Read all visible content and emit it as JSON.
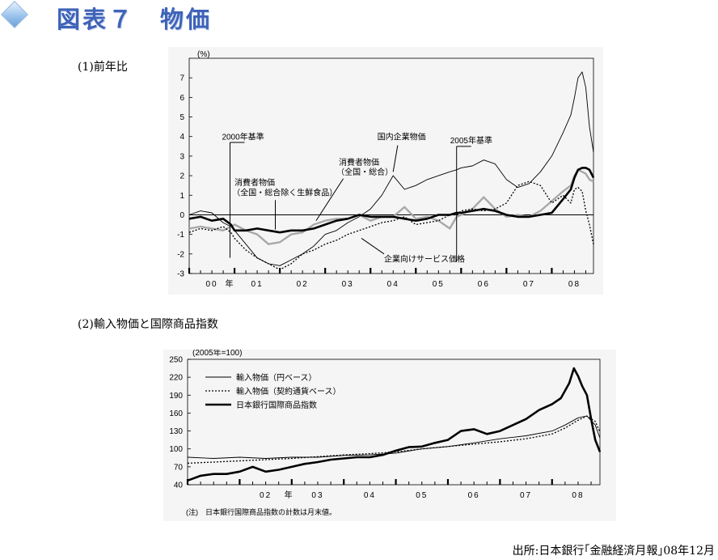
{
  "page": {
    "title": "図表７　物価",
    "section1_label": "(1)前年比",
    "section2_label": "(2)輸入物価と国際商品指数",
    "source": "出所:日本銀行｢金融経済月報｣08年12月"
  },
  "chart_data": [
    {
      "type": "line",
      "title": "",
      "unit_label": "(%)",
      "ylim": [
        -3,
        8
      ],
      "yticks": [
        -3,
        -2,
        -1,
        0,
        1,
        2,
        3,
        4,
        5,
        6,
        7
      ],
      "xlim": [
        2000.0,
        2008.92
      ],
      "x_tick_labels": [
        {
          "x": 2000.5,
          "label": "00"
        },
        {
          "x": 2000.9,
          "label": "年"
        },
        {
          "x": 2001.5,
          "label": "01"
        },
        {
          "x": 2002.5,
          "label": "02"
        },
        {
          "x": 2003.5,
          "label": "03"
        },
        {
          "x": 2004.5,
          "label": "04"
        },
        {
          "x": 2005.5,
          "label": "05"
        },
        {
          "x": 2006.5,
          "label": "06"
        },
        {
          "x": 2007.5,
          "label": "07"
        },
        {
          "x": 2008.5,
          "label": "08"
        }
      ],
      "annotations": [
        {
          "text": "2000年基準",
          "x": 2000.9
        },
        {
          "text": "2005年基準",
          "x": 2005.9
        },
        {
          "text": "消費者物価",
          "sub": "（全国・総合除く生鮮食品）",
          "target": "core_cpi"
        },
        {
          "text": "消費者物価",
          "sub": "（全国・総合）",
          "target": "cpi"
        },
        {
          "text": "国内企業物価",
          "target": "cgpi"
        },
        {
          "text": "企業向けサービス価格",
          "target": "cspi"
        }
      ],
      "series": [
        {
          "name": "国内企業物価",
          "style": "thin",
          "x": [
            2000.0,
            2000.25,
            2000.5,
            2000.75,
            2000.92,
            2001.0,
            2001.25,
            2001.5,
            2001.75,
            2002.0,
            2002.25,
            2002.5,
            2002.75,
            2003.0,
            2003.25,
            2003.5,
            2003.75,
            2004.0,
            2004.25,
            2004.5,
            2004.75,
            2005.0,
            2005.25,
            2005.5,
            2005.75,
            2005.9,
            2006.0,
            2006.25,
            2006.5,
            2006.75,
            2007.0,
            2007.25,
            2007.5,
            2007.75,
            2008.0,
            2008.25,
            2008.42,
            2008.5,
            2008.58,
            2008.67,
            2008.75,
            2008.83,
            2008.92
          ],
          "y": [
            0.0,
            0.2,
            0.1,
            -0.4,
            -0.6,
            -0.8,
            -1.5,
            -2.2,
            -2.5,
            -2.6,
            -2.3,
            -2.0,
            -1.6,
            -1.0,
            -0.8,
            -0.4,
            -0.1,
            0.3,
            1.0,
            2.0,
            1.3,
            1.5,
            1.8,
            2.0,
            2.2,
            2.3,
            2.4,
            2.5,
            2.8,
            2.6,
            1.8,
            1.4,
            1.6,
            2.2,
            3.0,
            4.2,
            5.1,
            6.0,
            7.0,
            7.3,
            6.5,
            4.5,
            3.2
          ]
        },
        {
          "name": "消費者物価（全国・総合）",
          "style": "gray",
          "x": [
            2000.0,
            2000.25,
            2000.5,
            2000.75,
            2000.92,
            2001.0,
            2001.25,
            2001.5,
            2001.75,
            2002.0,
            2002.25,
            2002.5,
            2002.75,
            2003.0,
            2003.25,
            2003.5,
            2003.75,
            2004.0,
            2004.25,
            2004.5,
            2004.75,
            2005.0,
            2005.25,
            2005.5,
            2005.75,
            2005.9,
            2006.0,
            2006.25,
            2006.5,
            2006.75,
            2007.0,
            2007.25,
            2007.5,
            2007.75,
            2008.0,
            2008.25,
            2008.42,
            2008.5,
            2008.58,
            2008.67,
            2008.75,
            2008.83,
            2008.92
          ],
          "y": [
            -0.7,
            -0.6,
            -0.7,
            -0.8,
            -0.6,
            -0.5,
            -0.8,
            -1.0,
            -1.5,
            -1.4,
            -1.0,
            -0.9,
            -0.5,
            -0.3,
            -0.2,
            -0.2,
            0.0,
            -0.3,
            -0.1,
            -0.1,
            0.4,
            -0.2,
            -0.1,
            -0.3,
            -0.7,
            -0.1,
            0.0,
            0.3,
            0.9,
            0.3,
            -0.1,
            0.0,
            -0.1,
            0.2,
            0.7,
            1.2,
            1.5,
            2.0,
            2.3,
            2.2,
            2.1,
            1.8,
            1.7
          ]
        },
        {
          "name": "消費者物価（全国・総合除く生鮮食品）",
          "style": "bold",
          "x": [
            2000.0,
            2000.25,
            2000.5,
            2000.75,
            2000.92,
            2001.0,
            2001.25,
            2001.5,
            2001.75,
            2002.0,
            2002.25,
            2002.5,
            2002.75,
            2003.0,
            2003.25,
            2003.5,
            2003.75,
            2004.0,
            2004.25,
            2004.5,
            2004.75,
            2005.0,
            2005.25,
            2005.5,
            2005.75,
            2005.9,
            2006.0,
            2006.25,
            2006.5,
            2006.75,
            2007.0,
            2007.25,
            2007.5,
            2007.75,
            2008.0,
            2008.25,
            2008.42,
            2008.5,
            2008.58,
            2008.67,
            2008.75,
            2008.83,
            2008.92
          ],
          "y": [
            -0.2,
            -0.1,
            -0.3,
            -0.2,
            -0.5,
            -0.8,
            -0.8,
            -0.7,
            -0.8,
            -0.9,
            -0.8,
            -0.8,
            -0.7,
            -0.5,
            -0.3,
            -0.2,
            0.0,
            -0.1,
            -0.1,
            -0.1,
            -0.2,
            -0.3,
            -0.2,
            0.0,
            0.0,
            0.1,
            0.1,
            0.2,
            0.3,
            0.2,
            0.0,
            -0.1,
            -0.1,
            0.0,
            0.1,
            0.8,
            1.3,
            1.9,
            2.3,
            2.4,
            2.4,
            2.3,
            1.9
          ]
        },
        {
          "name": "企業向けサービス価格",
          "style": "dotted",
          "x": [
            2000.0,
            2000.25,
            2000.5,
            2000.75,
            2000.92,
            2001.0,
            2001.25,
            2001.5,
            2001.75,
            2002.0,
            2002.25,
            2002.5,
            2002.75,
            2003.0,
            2003.25,
            2003.5,
            2003.75,
            2004.0,
            2004.25,
            2004.5,
            2004.75,
            2005.0,
            2005.25,
            2005.5,
            2005.75,
            2005.9,
            2006.0,
            2006.25,
            2006.5,
            2006.75,
            2007.0,
            2007.25,
            2007.5,
            2007.75,
            2008.0,
            2008.25,
            2008.42,
            2008.5,
            2008.58,
            2008.67,
            2008.75,
            2008.83,
            2008.92
          ],
          "y": [
            -0.9,
            -0.7,
            -0.8,
            -0.6,
            -0.9,
            -1.2,
            -1.8,
            -2.2,
            -2.5,
            -2.8,
            -2.5,
            -2.0,
            -1.8,
            -1.5,
            -1.3,
            -1.0,
            -0.8,
            -0.6,
            -0.4,
            -0.3,
            -0.1,
            -0.5,
            -0.4,
            -0.3,
            0.0,
            0.0,
            0.2,
            0.3,
            0.2,
            0.3,
            0.6,
            1.5,
            1.7,
            1.5,
            0.6,
            1.0,
            0.6,
            1.3,
            1.4,
            1.2,
            0.2,
            -0.5,
            -1.5
          ]
        }
      ]
    },
    {
      "type": "line",
      "title": "",
      "unit_label": "(2005年=100)",
      "ylim": [
        40,
        250
      ],
      "yticks": [
        40,
        70,
        100,
        130,
        160,
        190,
        220,
        250
      ],
      "xlim": [
        2001.0,
        2008.92
      ],
      "x_tick_labels": [
        {
          "x": 2002.5,
          "label": "02"
        },
        {
          "x": 2002.95,
          "label": "年"
        },
        {
          "x": 2003.5,
          "label": "03"
        },
        {
          "x": 2004.5,
          "label": "04"
        },
        {
          "x": 2005.5,
          "label": "05"
        },
        {
          "x": 2006.5,
          "label": "06"
        },
        {
          "x": 2007.5,
          "label": "07"
        },
        {
          "x": 2008.5,
          "label": "08"
        }
      ],
      "note": "(注)　日本銀行国際商品指数の計数は月末値。",
      "series": [
        {
          "name": "輸入物価（円ベース）",
          "style": "thin",
          "x": [
            2001.0,
            2001.5,
            2002.0,
            2002.5,
            2003.0,
            2003.5,
            2004.0,
            2004.5,
            2005.0,
            2005.5,
            2006.0,
            2006.5,
            2007.0,
            2007.5,
            2008.0,
            2008.25,
            2008.5,
            2008.67,
            2008.83,
            2008.92
          ],
          "y": [
            86,
            84,
            86,
            84,
            86,
            86,
            89,
            90,
            93,
            100,
            104,
            110,
            117,
            122,
            130,
            140,
            152,
            155,
            140,
            118
          ]
        },
        {
          "name": "輸入物価（契約通貨ベース）",
          "style": "dotted",
          "x": [
            2001.0,
            2001.5,
            2002.0,
            2002.5,
            2003.0,
            2003.5,
            2004.0,
            2004.5,
            2005.0,
            2005.5,
            2006.0,
            2006.5,
            2007.0,
            2007.5,
            2008.0,
            2008.25,
            2008.5,
            2008.67,
            2008.83,
            2008.92
          ],
          "y": [
            76,
            78,
            80,
            82,
            84,
            87,
            90,
            92,
            95,
            100,
            104,
            108,
            112,
            117,
            125,
            135,
            148,
            155,
            146,
            128
          ]
        },
        {
          "name": "日本銀行国際商品指数",
          "style": "bold",
          "x": [
            2001.0,
            2001.25,
            2001.5,
            2001.75,
            2002.0,
            2002.25,
            2002.5,
            2002.75,
            2003.0,
            2003.25,
            2003.5,
            2003.75,
            2004.0,
            2004.25,
            2004.5,
            2004.75,
            2005.0,
            2005.25,
            2005.5,
            2005.75,
            2006.0,
            2006.25,
            2006.5,
            2006.75,
            2007.0,
            2007.25,
            2007.5,
            2007.75,
            2008.0,
            2008.17,
            2008.33,
            2008.42,
            2008.5,
            2008.58,
            2008.67,
            2008.75,
            2008.83,
            2008.92
          ],
          "y": [
            47,
            55,
            58,
            58,
            62,
            70,
            62,
            65,
            70,
            75,
            78,
            82,
            84,
            86,
            86,
            90,
            97,
            103,
            104,
            110,
            115,
            130,
            133,
            125,
            130,
            140,
            150,
            165,
            175,
            185,
            210,
            235,
            222,
            205,
            190,
            150,
            115,
            95
          ]
        }
      ]
    }
  ]
}
